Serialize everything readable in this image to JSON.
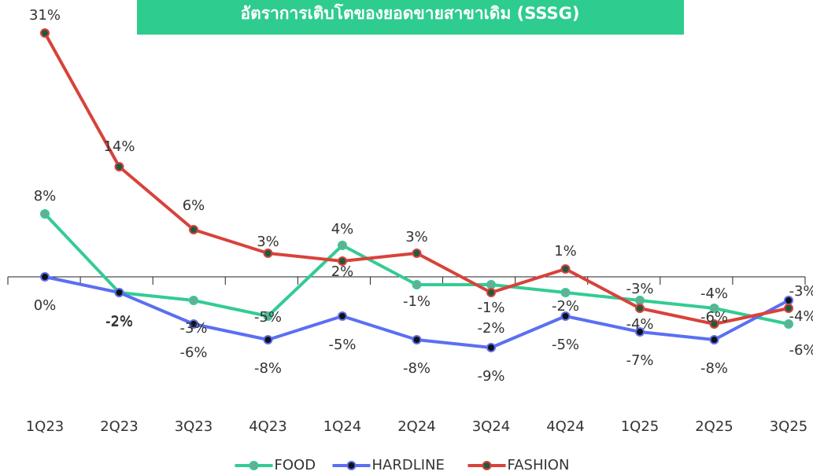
{
  "chart_data": {
    "type": "line",
    "title": "อัตราการเติบโตของยอดขายสาขาเดิม (SSSG)",
    "title_color": "#2ecc8f",
    "categories": [
      "1Q23",
      "2Q23",
      "3Q23",
      "4Q23",
      "1Q24",
      "2Q24",
      "3Q24",
      "4Q24",
      "1Q25",
      "2Q25",
      "3Q25"
    ],
    "series": [
      {
        "name": "FOOD",
        "color": "#33cc93",
        "marker_color": "#6fa898",
        "values": [
          8,
          -2,
          -3,
          -5,
          4,
          -1,
          -1,
          -2,
          -3,
          -4,
          -6
        ],
        "value_labels": [
          "8%",
          "-2%",
          "-3%",
          "-5%",
          "4%",
          "-1%",
          "-1%",
          "-2%",
          "-3%",
          "-4%",
          "-6%"
        ]
      },
      {
        "name": "HARDLINE",
        "color": "#5b6ff2",
        "marker_color": "#111111",
        "values": [
          0,
          -2,
          -6,
          -8,
          -5,
          -8,
          -9,
          -5,
          -7,
          -8,
          -3
        ],
        "value_labels": [
          "0%",
          "-2%",
          "-6%",
          "-8%",
          "-5%",
          "-8%",
          "-9%",
          "-5%",
          "-7%",
          "-8%",
          "-3%"
        ]
      },
      {
        "name": "FASHION",
        "color": "#d8423a",
        "marker_color": "#1f5a40",
        "values": [
          31,
          14,
          6,
          3,
          2,
          3,
          -2,
          1,
          -4,
          -6,
          -4
        ],
        "value_labels": [
          "31%",
          "14%",
          "6%",
          "3%",
          "2%",
          "3%",
          "-2%",
          "1%",
          "-4%",
          "-6%",
          "-4%"
        ]
      }
    ],
    "legend": "bottom"
  }
}
